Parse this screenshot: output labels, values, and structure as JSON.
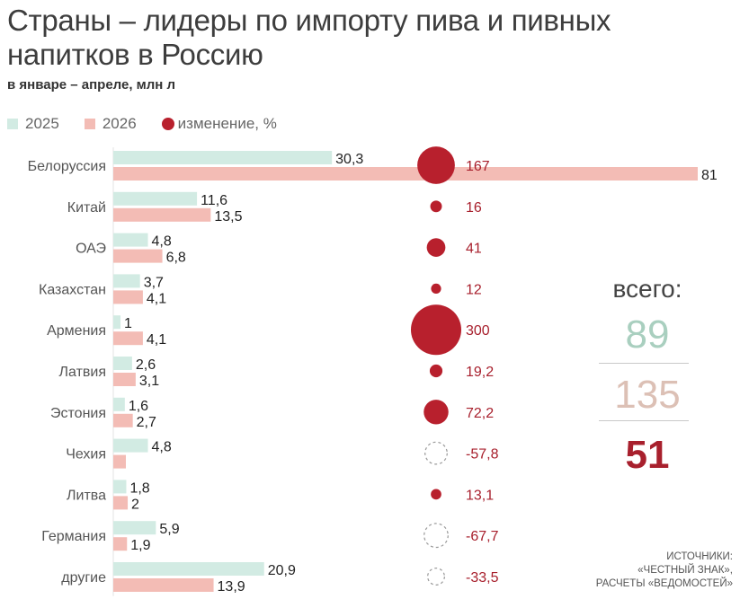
{
  "title": "Страны – лидеры по импорту пива и пивных напитков в Россию",
  "subtitle": "в январе – апреле, млн л",
  "legend": {
    "s2025": "2025",
    "s2026": "2026",
    "change": "изменение, %"
  },
  "colors": {
    "s2025": "#d2ebe3",
    "s2026": "#f3bcb5",
    "change": "#b8202d",
    "negative_outline": "#999999"
  },
  "totals": {
    "label": "всего:",
    "v2025": "89",
    "v2026": "135",
    "change": "51"
  },
  "sources": {
    "line1": "Источники:",
    "line2": "«Честный знак»,",
    "line3": "расчеты «Ведомостей»"
  },
  "chart_data": {
    "type": "bar",
    "orientation": "horizontal",
    "categories": [
      "Белоруссия",
      "Китай",
      "ОАЭ",
      "Казахстан",
      "Армения",
      "Латвия",
      "Эстония",
      "Чехия",
      "Литва",
      "Германия",
      "другие"
    ],
    "series": [
      {
        "name": "2025",
        "values": [
          30.3,
          11.6,
          4.8,
          3.7,
          1,
          2.6,
          1.6,
          4.8,
          1.8,
          5.9,
          20.9
        ],
        "labels": [
          "30,3",
          "11,6",
          "4,8",
          "3,7",
          "1",
          "2,6",
          "1,6",
          "4,8",
          "1,8",
          "5,9",
          "20,9"
        ]
      },
      {
        "name": "2026",
        "values": [
          81,
          13.5,
          6.8,
          4.1,
          4.1,
          3.1,
          2.7,
          null,
          2,
          1.9,
          13.9
        ],
        "labels": [
          "81",
          "13,5",
          "6,8",
          "4,1",
          "4,1",
          "3,1",
          "2,7",
          "",
          "2",
          "1,9",
          "13,9"
        ]
      },
      {
        "name": "изменение, %",
        "values": [
          167,
          16,
          41,
          12,
          300,
          19.2,
          72.2,
          -57.8,
          13.1,
          -67.7,
          -33.5
        ],
        "labels": [
          "167",
          "16",
          "41",
          "12",
          "300",
          "19,2",
          "72,2",
          "-57,8",
          "13,1",
          "-67,7",
          "-33,5"
        ]
      }
    ]
  }
}
